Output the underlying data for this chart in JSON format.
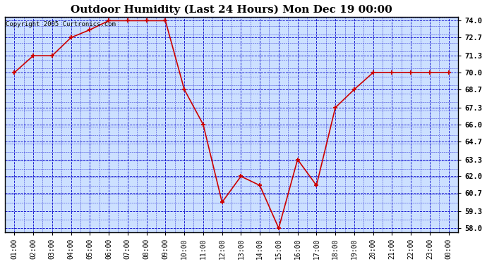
{
  "title": "Outdoor Humidity (Last 24 Hours) Mon Dec 19 00:00",
  "copyright": "Copyright 2005 Curtronics.com",
  "x_labels": [
    "01:00",
    "02:00",
    "03:00",
    "04:00",
    "05:00",
    "06:00",
    "07:00",
    "08:00",
    "09:00",
    "10:00",
    "11:00",
    "12:00",
    "13:00",
    "14:00",
    "15:00",
    "16:00",
    "17:00",
    "18:00",
    "19:00",
    "20:00",
    "21:00",
    "22:00",
    "23:00",
    "00:00"
  ],
  "y_values": [
    70.0,
    71.3,
    71.3,
    72.7,
    73.3,
    74.0,
    74.0,
    74.0,
    74.0,
    68.7,
    66.0,
    60.0,
    62.0,
    61.3,
    58.0,
    63.3,
    61.3,
    67.3,
    68.7,
    70.0,
    70.0,
    70.0,
    70.0,
    70.0
  ],
  "line_color": "#cc0000",
  "marker_color": "#cc0000",
  "fig_bg_color": "#ffffff",
  "plot_bg_color": "#cce0ff",
  "grid_color": "#0000cc",
  "border_color": "#000000",
  "title_color": "#000000",
  "y_min": 58.0,
  "y_max": 74.0,
  "y_ticks": [
    58.0,
    59.3,
    60.7,
    62.0,
    63.3,
    64.7,
    66.0,
    67.3,
    68.7,
    70.0,
    71.3,
    72.7,
    74.0
  ]
}
